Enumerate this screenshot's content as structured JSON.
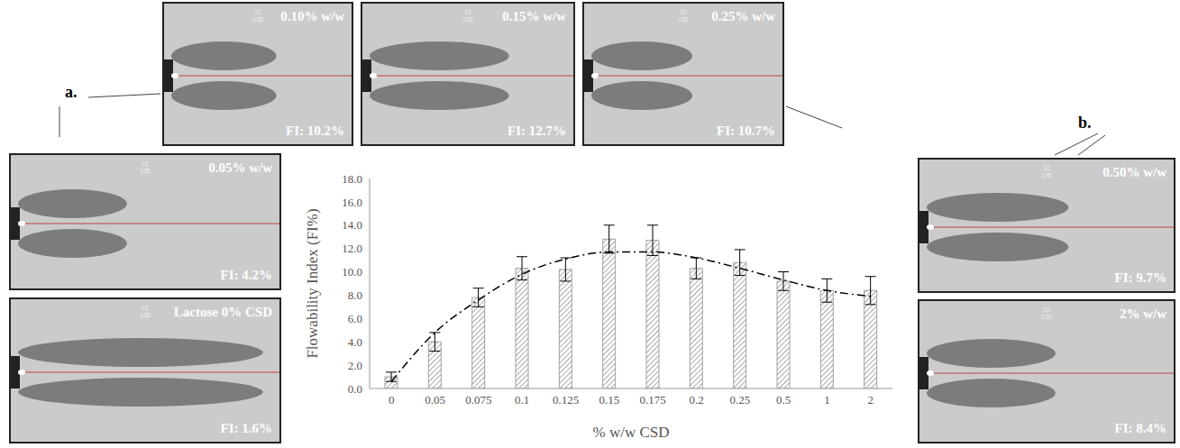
{
  "chart_data": {
    "type": "bar",
    "x_label": "% w/w CSD",
    "y_label": "Flowability Index (FI%)",
    "categories": [
      "0",
      "0.05",
      "0.075",
      "0.1",
      "0.125",
      "0.15",
      "0.175",
      "0.2",
      "0.25",
      "0.5",
      "1",
      "2"
    ],
    "series": [
      {
        "type": "bar",
        "color": "#8c8c8c",
        "values": [
          1.0,
          4.0,
          7.8,
          10.3,
          10.2,
          12.8,
          12.7,
          10.3,
          10.8,
          9.2,
          8.4,
          8.4
        ],
        "error": [
          0.4,
          0.8,
          0.8,
          1.0,
          1.0,
          1.2,
          1.3,
          0.9,
          1.1,
          0.8,
          1.0,
          1.2
        ]
      },
      {
        "type": "line",
        "line_style": "dashdot",
        "color": "#000000",
        "values": [
          0.6,
          4.8,
          7.6,
          9.8,
          11.1,
          11.7,
          11.7,
          11.2,
          10.3,
          9.3,
          8.4,
          7.9
        ]
      }
    ],
    "ylim": [
      0,
      18
    ],
    "yticks": [
      {
        "value": 0,
        "label": "0.0"
      },
      {
        "value": 2,
        "label": "2.0"
      },
      {
        "value": 4,
        "label": "4.0"
      },
      {
        "value": 6,
        "label": "6.0"
      },
      {
        "value": 8,
        "label": "8.0"
      },
      {
        "value": 10,
        "label": "10.0"
      },
      {
        "value": 12,
        "label": "12.0"
      },
      {
        "value": 14,
        "label": "14.0"
      },
      {
        "value": 16,
        "label": "16.0"
      },
      {
        "value": 18,
        "label": "18.0"
      }
    ],
    "grid": false
  },
  "group_labels": [
    "a.",
    "b."
  ],
  "images": [
    {
      "label": "0.10% w/w",
      "fi": "FI: 10.2%",
      "marks": [
        "12",
        "135"
      ]
    },
    {
      "label": "0.15% w/w",
      "fi": "FI: 12.7%",
      "marks": [
        "12",
        "135"
      ]
    },
    {
      "label": "0.25% w/w",
      "fi": "FI: 10.7%",
      "marks": [
        "12",
        "135"
      ]
    },
    {
      "label": "0.05% w/w",
      "fi": "FI: 4.2%",
      "marks": [
        "12",
        "135"
      ]
    },
    {
      "label": "Lactose 0% CSD",
      "fi": "FI: 1.6%",
      "marks": [
        "12",
        "135"
      ]
    },
    {
      "label": "0.50% w/w",
      "fi": "FI: 9.7%",
      "marks": [
        "12",
        "135"
      ]
    },
    {
      "label": "2% w/w",
      "fi": "FI: 8.4%",
      "marks": [
        "12",
        "135"
      ]
    }
  ]
}
